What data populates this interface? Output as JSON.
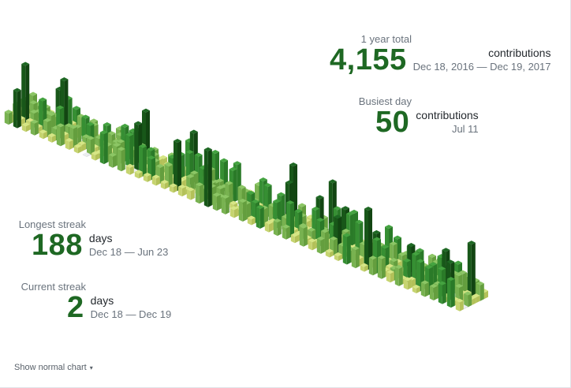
{
  "chart_data": {
    "type": "isometric-contribution-calendar",
    "title": "",
    "legend_levels": [
      0,
      1,
      2,
      3,
      4
    ],
    "weeks": 53,
    "days_per_week": 7,
    "level_colors": {
      "0": [
        "#ebedf0",
        "#e0e2e5",
        "#d4d7da"
      ],
      "1": [
        "#d6e685",
        "#c6d46f",
        "#b3c159"
      ],
      "2": [
        "#8cc665",
        "#78b250",
        "#649e3e"
      ],
      "3": [
        "#44a340",
        "#368f33",
        "#2a7a28"
      ],
      "4": [
        "#1e6823",
        "#185719",
        "#124512"
      ]
    }
  },
  "year_total": {
    "label": "1 year total",
    "value": "4,155",
    "unit": "contributions",
    "range": "Dec 18, 2016 — Dec 19, 2017"
  },
  "busiest_day": {
    "label": "Busiest day",
    "value": "50",
    "unit": "contributions",
    "range": "Jul 11"
  },
  "longest_streak": {
    "label": "Longest streak",
    "value": "188",
    "unit": "days",
    "range": "Dec 18 — Jun 23"
  },
  "current_streak": {
    "label": "Current streak",
    "value": "2",
    "unit": "days",
    "range": "Dec 18 — Dec 19"
  },
  "toggle": {
    "label": "Show normal chart",
    "caret": "▾"
  }
}
